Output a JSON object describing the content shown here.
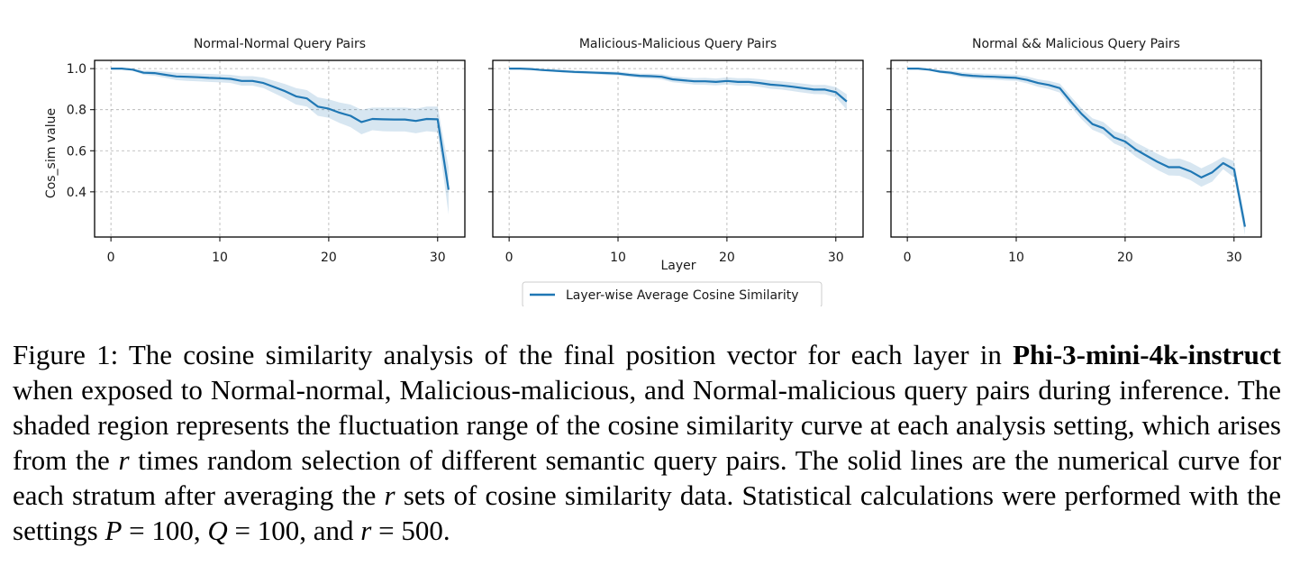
{
  "chart_data": {
    "type": "line",
    "shared": {
      "xlabel": "Layer",
      "ylabel": "Cos_sim value",
      "xlim": [
        -1.5,
        32.5
      ],
      "ylim": [
        0.18,
        1.04
      ],
      "xticks": [
        0,
        10,
        20,
        30
      ],
      "yticks": [
        0.4,
        0.6,
        0.8,
        1.0
      ],
      "ytick_labels": [
        "0.4",
        "0.6",
        "0.8",
        "1.0"
      ],
      "grid": true,
      "legend": "Layer-wise Average Cosine Similarity",
      "legend_position": "below-center",
      "line_color": "#1f77b4",
      "band_color": "#1f77b4"
    },
    "panels": [
      {
        "title": "Normal-Normal Query Pairs",
        "x": [
          0,
          1,
          2,
          3,
          4,
          5,
          6,
          7,
          8,
          9,
          10,
          11,
          12,
          13,
          14,
          15,
          16,
          17,
          18,
          19,
          20,
          21,
          22,
          23,
          24,
          25,
          26,
          27,
          28,
          29,
          30,
          31
        ],
        "y": [
          1.0,
          1.0,
          0.995,
          0.98,
          0.978,
          0.97,
          0.962,
          0.96,
          0.958,
          0.955,
          0.953,
          0.95,
          0.94,
          0.94,
          0.93,
          0.91,
          0.89,
          0.865,
          0.855,
          0.815,
          0.805,
          0.785,
          0.77,
          0.74,
          0.755,
          0.753,
          0.752,
          0.752,
          0.745,
          0.755,
          0.753,
          0.41
        ],
        "upper": [
          1.0,
          1.0,
          0.998,
          0.99,
          0.99,
          0.985,
          0.98,
          0.978,
          0.976,
          0.974,
          0.972,
          0.97,
          0.963,
          0.963,
          0.956,
          0.94,
          0.925,
          0.905,
          0.895,
          0.86,
          0.85,
          0.835,
          0.825,
          0.8,
          0.81,
          0.81,
          0.81,
          0.81,
          0.805,
          0.815,
          0.815,
          0.52
        ],
        "lower": [
          1.0,
          1.0,
          0.99,
          0.97,
          0.965,
          0.955,
          0.944,
          0.94,
          0.938,
          0.935,
          0.933,
          0.93,
          0.917,
          0.917,
          0.905,
          0.88,
          0.855,
          0.825,
          0.815,
          0.77,
          0.76,
          0.735,
          0.715,
          0.68,
          0.7,
          0.695,
          0.694,
          0.694,
          0.685,
          0.695,
          0.69,
          0.29
        ]
      },
      {
        "title": "Malicious-Malicious Query Pairs",
        "x": [
          0,
          1,
          2,
          3,
          4,
          5,
          6,
          7,
          8,
          9,
          10,
          11,
          12,
          13,
          14,
          15,
          16,
          17,
          18,
          19,
          20,
          21,
          22,
          23,
          24,
          25,
          26,
          27,
          28,
          29,
          30,
          31
        ],
        "y": [
          1.0,
          1.0,
          0.998,
          0.993,
          0.99,
          0.987,
          0.984,
          0.982,
          0.98,
          0.978,
          0.976,
          0.97,
          0.965,
          0.963,
          0.96,
          0.948,
          0.943,
          0.938,
          0.938,
          0.935,
          0.94,
          0.935,
          0.935,
          0.93,
          0.922,
          0.918,
          0.912,
          0.905,
          0.898,
          0.898,
          0.885,
          0.84
        ],
        "upper": [
          1.0,
          1.0,
          1.0,
          0.997,
          0.995,
          0.993,
          0.991,
          0.99,
          0.988,
          0.987,
          0.985,
          0.98,
          0.976,
          0.975,
          0.973,
          0.962,
          0.958,
          0.954,
          0.955,
          0.952,
          0.957,
          0.953,
          0.953,
          0.949,
          0.942,
          0.938,
          0.933,
          0.927,
          0.92,
          0.921,
          0.91,
          0.875
        ],
        "lower": [
          1.0,
          1.0,
          0.996,
          0.989,
          0.985,
          0.981,
          0.977,
          0.974,
          0.972,
          0.969,
          0.967,
          0.96,
          0.954,
          0.951,
          0.947,
          0.934,
          0.928,
          0.922,
          0.921,
          0.918,
          0.923,
          0.917,
          0.917,
          0.911,
          0.902,
          0.898,
          0.891,
          0.883,
          0.876,
          0.875,
          0.86,
          0.8
        ]
      },
      {
        "title": "Normal && Malicious Query Pairs",
        "x": [
          0,
          1,
          2,
          3,
          4,
          5,
          6,
          7,
          8,
          9,
          10,
          11,
          12,
          13,
          14,
          15,
          16,
          17,
          18,
          19,
          20,
          21,
          22,
          23,
          24,
          25,
          26,
          27,
          28,
          29,
          30,
          31
        ],
        "y": [
          1.0,
          1.0,
          0.995,
          0.985,
          0.98,
          0.97,
          0.965,
          0.962,
          0.96,
          0.957,
          0.955,
          0.945,
          0.93,
          0.92,
          0.905,
          0.84,
          0.78,
          0.73,
          0.71,
          0.665,
          0.645,
          0.605,
          0.575,
          0.545,
          0.52,
          0.52,
          0.5,
          0.47,
          0.495,
          0.54,
          0.51,
          0.23
        ],
        "upper": [
          1.0,
          1.0,
          0.998,
          0.992,
          0.99,
          0.982,
          0.978,
          0.976,
          0.974,
          0.972,
          0.97,
          0.962,
          0.948,
          0.94,
          0.927,
          0.865,
          0.806,
          0.758,
          0.74,
          0.695,
          0.678,
          0.64,
          0.612,
          0.584,
          0.56,
          0.562,
          0.543,
          0.515,
          0.54,
          0.57,
          0.55,
          0.27
        ],
        "lower": [
          1.0,
          1.0,
          0.992,
          0.978,
          0.97,
          0.958,
          0.952,
          0.948,
          0.946,
          0.942,
          0.94,
          0.928,
          0.912,
          0.9,
          0.883,
          0.815,
          0.754,
          0.702,
          0.68,
          0.635,
          0.612,
          0.57,
          0.538,
          0.506,
          0.48,
          0.478,
          0.457,
          0.425,
          0.45,
          0.51,
          0.47,
          0.19
        ]
      }
    ]
  },
  "caption": {
    "label": "Figure 1:",
    "text_a": "The cosine similarity analysis of the final position vector for each layer in",
    "model": "Phi-3-mini-4k-instruct",
    "text_b": "when exposed to Normal-normal, Malicious-malicious, and Normal-malicious query pairs during inference. The shaded region represents the fluctuation range of the cosine similarity curve at each analysis setting, which arises from the",
    "var_r": "r",
    "text_c": "times random selection of different semantic query pairs. The solid lines are the numerical curve for each stratum after averaging the",
    "text_d": "sets of cosine similarity data. Statistical calculations were performed with the settings",
    "var_p": "P",
    "eq_p": "= 100,",
    "var_q": "Q",
    "eq_q": "= 100, and",
    "eq_r": "= 500."
  }
}
